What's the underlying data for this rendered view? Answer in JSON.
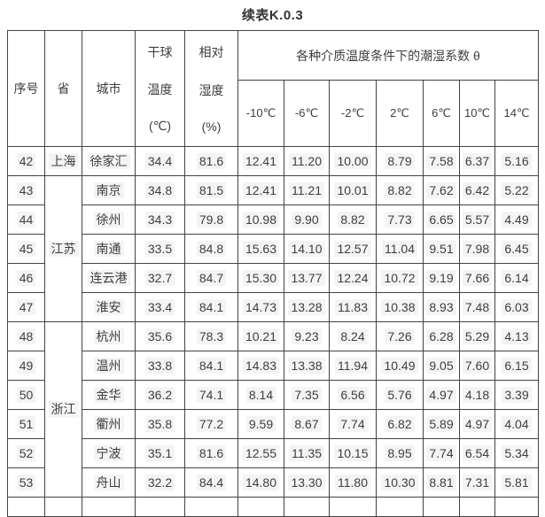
{
  "title": "续表K.0.3",
  "colors": {
    "border": "#434343",
    "text": "#3e3e3e",
    "background": "#ffffff"
  },
  "table": {
    "headers": {
      "serial": "序号",
      "province": "省",
      "city": "城市",
      "dry_bulb_lines": [
        "干球",
        "温度",
        "(℃)"
      ],
      "humidity_lines": [
        "相对",
        "湿度",
        "(%)"
      ],
      "theta_group": "各种介质温度条件下的潮湿系数 θ",
      "temps": [
        "-10℃",
        "-6℃",
        "-2℃",
        "2℃",
        "6℃",
        "10℃",
        "14℃"
      ]
    },
    "rows": [
      {
        "no": "42",
        "province": "上海",
        "province_span": 1,
        "city": "徐家汇",
        "dry_bulb": "34.4",
        "humidity": "81.6",
        "values": [
          "12.41",
          "11.20",
          "10.00",
          "8.79",
          "7.58",
          "6.37",
          "5.16"
        ]
      },
      {
        "no": "43",
        "province": "江苏",
        "province_span": 5,
        "city": "南京",
        "dry_bulb": "34.8",
        "humidity": "81.5",
        "values": [
          "12.41",
          "11.21",
          "10.01",
          "8.82",
          "7.62",
          "6.42",
          "5.22"
        ]
      },
      {
        "no": "44",
        "city": "徐州",
        "dry_bulb": "34.3",
        "humidity": "79.8",
        "values": [
          "10.98",
          "9.90",
          "8.82",
          "7.73",
          "6.65",
          "5.57",
          "4.49"
        ]
      },
      {
        "no": "45",
        "city": "南通",
        "dry_bulb": "33.5",
        "humidity": "84.8",
        "values": [
          "15.63",
          "14.10",
          "12.57",
          "11.04",
          "9.51",
          "7.98",
          "6.45"
        ]
      },
      {
        "no": "46",
        "city": "连云港",
        "dry_bulb": "32.7",
        "humidity": "84.7",
        "values": [
          "15.30",
          "13.77",
          "12.24",
          "10.72",
          "9.19",
          "7.66",
          "6.14"
        ]
      },
      {
        "no": "47",
        "city": "淮安",
        "dry_bulb": "33.4",
        "humidity": "84.1",
        "values": [
          "14.73",
          "13.28",
          "11.83",
          "10.38",
          "8.93",
          "7.48",
          "6.03"
        ]
      },
      {
        "no": "48",
        "province": "浙江",
        "province_span": 6,
        "city": "杭州",
        "dry_bulb": "35.6",
        "humidity": "78.3",
        "values": [
          "10.21",
          "9.23",
          "8.24",
          "7.26",
          "6.28",
          "5.29",
          "4.13"
        ]
      },
      {
        "no": "49",
        "city": "温州",
        "dry_bulb": "33.8",
        "humidity": "84.1",
        "values": [
          "14.83",
          "13.38",
          "11.94",
          "10.49",
          "9.05",
          "7.60",
          "6.15"
        ]
      },
      {
        "no": "50",
        "city": "金华",
        "dry_bulb": "36.2",
        "humidity": "74.1",
        "values": [
          "8.14",
          "7.35",
          "6.56",
          "5.76",
          "4.97",
          "4.18",
          "3.39"
        ]
      },
      {
        "no": "51",
        "city": "衢州",
        "dry_bulb": "35.8",
        "humidity": "77.2",
        "values": [
          "9.59",
          "8.67",
          "7.74",
          "6.82",
          "5.89",
          "4.97",
          "4.04"
        ]
      },
      {
        "no": "52",
        "city": "宁波",
        "dry_bulb": "35.1",
        "humidity": "81.6",
        "values": [
          "12.55",
          "11.35",
          "10.15",
          "8.95",
          "7.74",
          "6.54",
          "5.34"
        ]
      },
      {
        "no": "53",
        "city": "舟山",
        "dry_bulb": "32.2",
        "humidity": "84.4",
        "values": [
          "14.80",
          "13.30",
          "11.80",
          "10.30",
          "8.81",
          "7.31",
          "5.81"
        ]
      }
    ]
  }
}
